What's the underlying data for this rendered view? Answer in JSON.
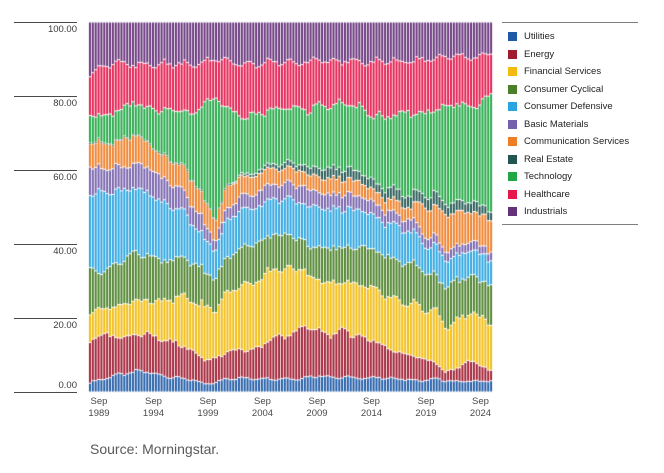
{
  "source_note": "Source: Morningstar.",
  "chart_data": {
    "type": "bar",
    "variant": "100-percent-stacked-columns",
    "title": "",
    "bar_count": 141,
    "frequency": "quarterly",
    "x_axis": {
      "range": "Sep 1989 - Sep 2024",
      "tick_labels": [
        {
          "month": "Sep",
          "year": "1989"
        },
        {
          "month": "Sep",
          "year": "1994"
        },
        {
          "month": "Sep",
          "year": "1999"
        },
        {
          "month": "Sep",
          "year": "2004"
        },
        {
          "month": "Sep",
          "year": "2009"
        },
        {
          "month": "Sep",
          "year": "2014"
        },
        {
          "month": "Sep",
          "year": "2019"
        },
        {
          "month": "Sep",
          "year": "2024"
        }
      ]
    },
    "y_axis": {
      "ylim": [
        0,
        100
      ],
      "tick_values": [
        100,
        80,
        60,
        40,
        20,
        0
      ],
      "tick_labels": [
        "100.00",
        "80.00",
        "60.00",
        "40.00",
        "20.00",
        "0.00"
      ]
    },
    "legend": {
      "position": "right"
    },
    "sample_years": [
      1989,
      1990,
      1991,
      1992,
      1993,
      1994,
      1995,
      1996,
      1997,
      1998,
      1999,
      2000,
      2001,
      2002,
      2003,
      2004,
      2005,
      2006,
      2007,
      2008,
      2009,
      2010,
      2011,
      2012,
      2013,
      2014,
      2015,
      2016,
      2017,
      2018,
      2019,
      2020,
      2021,
      2022,
      2023,
      2024
    ],
    "series": [
      {
        "name": "Utilities",
        "color": "#1E5AA6",
        "values": [
          2.5,
          3.5,
          4.5,
          5.0,
          5.5,
          5.5,
          4.5,
          4.0,
          3.5,
          3.0,
          2.0,
          2.5,
          3.5,
          3.5,
          3.5,
          3.5,
          3.5,
          3.5,
          3.5,
          4.0,
          4.5,
          4.0,
          4.0,
          3.8,
          3.5,
          4.0,
          3.5,
          3.5,
          3.2,
          3.0,
          3.5,
          3.2,
          2.8,
          3.0,
          2.8,
          3.0
        ]
      },
      {
        "name": "Energy",
        "color": "#A01B30",
        "values": [
          11.0,
          12.5,
          11.0,
          10.0,
          10.0,
          10.0,
          9.5,
          9.5,
          8.5,
          7.0,
          6.5,
          6.0,
          7.0,
          7.5,
          7.5,
          8.5,
          11.0,
          11.0,
          12.5,
          14.0,
          12.0,
          11.5,
          12.5,
          11.5,
          10.5,
          9.5,
          7.5,
          7.0,
          6.5,
          6.0,
          4.5,
          2.5,
          3.5,
          5.5,
          4.5,
          2.5
        ]
      },
      {
        "name": "Financial Services",
        "color": "#F2BB0D",
        "values": [
          7.5,
          7.0,
          8.0,
          9.0,
          9.5,
          8.5,
          10.0,
          11.0,
          12.5,
          12.5,
          13.5,
          13.0,
          15.0,
          16.0,
          17.0,
          17.5,
          18.0,
          18.0,
          17.0,
          14.0,
          13.5,
          13.5,
          13.0,
          13.5,
          14.0,
          13.5,
          13.5,
          13.5,
          14.0,
          13.5,
          14.0,
          12.5,
          13.0,
          13.0,
          12.5,
          13.0
        ]
      },
      {
        "name": "Consumer Cyclical",
        "color": "#4A8028",
        "values": [
          11.5,
          10.0,
          11.5,
          12.5,
          13.0,
          12.0,
          11.0,
          10.5,
          10.0,
          9.5,
          9.0,
          8.0,
          9.5,
          9.5,
          10.0,
          9.5,
          9.0,
          9.0,
          8.5,
          8.0,
          9.0,
          9.5,
          9.5,
          9.5,
          10.5,
          10.0,
          10.5,
          10.5,
          10.5,
          10.5,
          9.5,
          10.5,
          11.0,
          10.0,
          10.0,
          10.0
        ]
      },
      {
        "name": "Consumer Defensive",
        "color": "#29A4E0",
        "values": [
          20.5,
          21.5,
          20.5,
          19.0,
          17.5,
          17.0,
          15.5,
          14.0,
          12.5,
          9.5,
          8.0,
          7.5,
          9.5,
          10.0,
          9.5,
          9.5,
          9.5,
          9.5,
          9.5,
          10.5,
          11.0,
          10.5,
          10.5,
          10.0,
          9.5,
          8.5,
          9.0,
          9.0,
          8.5,
          7.5,
          7.5,
          7.5,
          6.5,
          7.0,
          7.0,
          6.3
        ]
      },
      {
        "name": "Basic Materials",
        "color": "#7560AC",
        "values": [
          7.0,
          6.5,
          6.5,
          6.5,
          6.5,
          7.0,
          6.5,
          6.0,
          5.5,
          4.5,
          4.0,
          2.5,
          3.0,
          3.5,
          3.5,
          4.0,
          4.0,
          4.0,
          4.5,
          4.5,
          4.0,
          4.0,
          4.0,
          3.8,
          3.5,
          3.5,
          3.0,
          3.0,
          3.0,
          2.8,
          2.5,
          2.5,
          2.5,
          2.5,
          2.3,
          2.2
        ]
      },
      {
        "name": "Communication Services",
        "color": "#EE7D24",
        "values": [
          6.7,
          7.0,
          7.0,
          7.5,
          8.0,
          6.5,
          6.0,
          6.0,
          6.0,
          6.5,
          6.0,
          5.5,
          5.5,
          5.0,
          4.5,
          4.5,
          4.0,
          4.0,
          4.0,
          4.0,
          4.0,
          4.5,
          4.0,
          4.0,
          3.5,
          3.2,
          3.2,
          3.5,
          3.2,
          7.5,
          8.0,
          9.5,
          9.5,
          8.0,
          8.0,
          8.0
        ]
      },
      {
        "name": "Real Estate",
        "color": "#215550",
        "values": [
          0.2,
          0.2,
          0.2,
          0.2,
          0.2,
          0.2,
          0.2,
          0.2,
          0.2,
          0.2,
          0.2,
          0.2,
          0.3,
          0.5,
          0.8,
          1.0,
          1.2,
          1.5,
          1.5,
          2.0,
          2.5,
          2.8,
          2.8,
          2.8,
          2.5,
          2.3,
          2.8,
          3.2,
          3.0,
          3.0,
          3.5,
          3.0,
          2.8,
          2.8,
          2.5,
          2.3
        ]
      },
      {
        "name": "Technology",
        "color": "#21A744",
        "values": [
          7.3,
          7.0,
          8.0,
          8.5,
          8.5,
          9.0,
          11.0,
          13.0,
          14.0,
          16.0,
          26.0,
          30.0,
          21.0,
          14.5,
          15.5,
          14.0,
          14.5,
          14.5,
          15.0,
          15.5,
          17.0,
          17.0,
          17.5,
          17.5,
          16.5,
          18.0,
          18.5,
          20.0,
          22.0,
          21.5,
          23.0,
          26.5,
          27.5,
          25.0,
          27.5,
          30.0
        ]
      },
      {
        "name": "Healthcare",
        "color": "#E5174B",
        "values": [
          11.5,
          13.0,
          14.5,
          12.0,
          10.5,
          11.5,
          12.0,
          12.0,
          12.0,
          13.0,
          10.0,
          10.5,
          12.0,
          13.5,
          13.5,
          13.0,
          12.5,
          12.5,
          12.0,
          13.5,
          12.5,
          12.0,
          11.5,
          12.0,
          12.5,
          14.0,
          15.0,
          14.0,
          13.5,
          14.5,
          13.5,
          13.5,
          13.0,
          14.0,
          13.0,
          10.5
        ]
      },
      {
        "name": "Industrials",
        "color": "#653179",
        "values": [
          14.0,
          12.5,
          11.5,
          11.0,
          11.5,
          11.5,
          11.0,
          11.0,
          11.0,
          10.5,
          10.0,
          9.5,
          10.0,
          10.5,
          11.0,
          10.5,
          10.5,
          10.5,
          11.0,
          11.0,
          10.0,
          10.5,
          10.5,
          10.5,
          11.0,
          10.5,
          10.0,
          10.5,
          10.5,
          10.0,
          10.0,
          9.0,
          9.0,
          9.5,
          9.5,
          8.0
        ]
      }
    ]
  }
}
